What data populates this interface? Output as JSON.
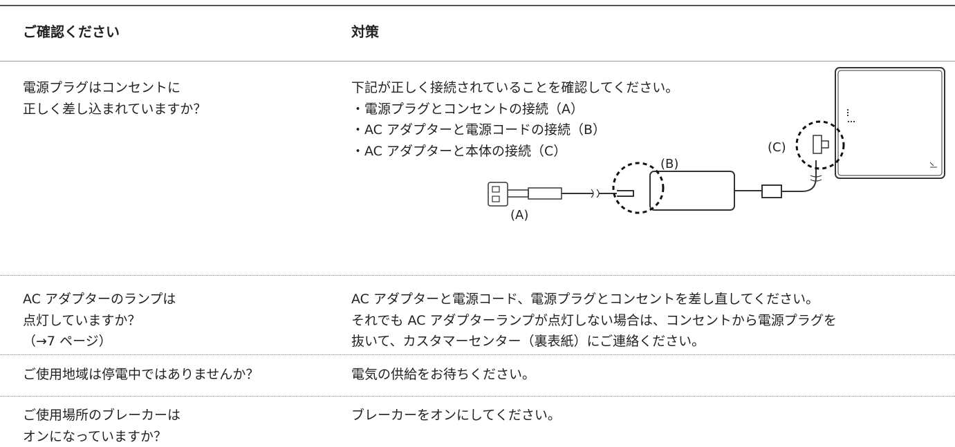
{
  "table": {
    "header": [
      "ご確認ください",
      "対策"
    ],
    "rows": [
      [
        [
          "電源プラグはコンセントに",
          "正しく差し込まれていますか？"
        ],
        [
          "下記が正しく接続されていることを確認してください。",
          "・電源プラグとコンセントの接続（A）",
          "・AC アダプターと電源コードの接続（B）",
          "・AC アダプターと本体の接続（C）"
        ]
      ],
      [
        [
          "AC アダプターのランプは",
          "点灯していますか？",
          "（→7 ページ）"
        ],
        [
          "AC アダプターと電源コード、電源プラグとコンセントを差し直してください。",
          "それでも AC アダプターランプが点灯しない場合は、コンセントから電源プラグを",
          "抜いて、カスタマーセンター（裏表紙）にご連絡ください。"
        ]
      ],
      [
        [
          "ご使用地域は停電中ではありませんか？"
        ],
        [
          "電気の供給をお待ちください。"
        ]
      ],
      [
        [
          "ご使用場所のブレーカーは",
          "オンになっていますか？"
        ],
        [
          "ブレーカーをオンにしてください。"
        ]
      ]
    ]
  },
  "diagram": {
    "labels": [
      "(A)",
      "(B)",
      "(C)"
    ]
  }
}
